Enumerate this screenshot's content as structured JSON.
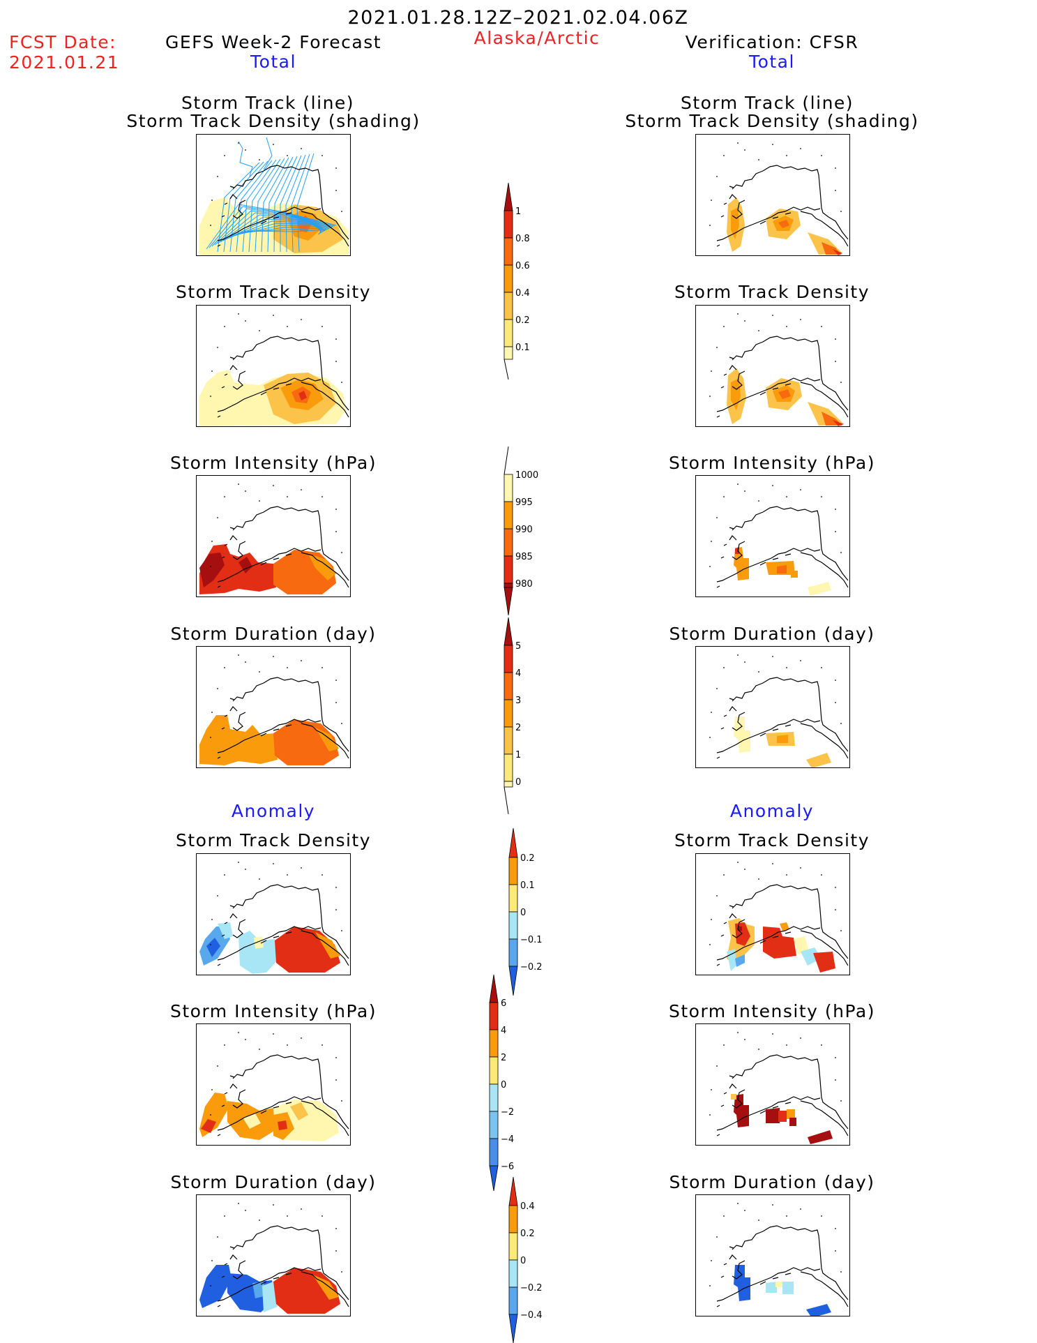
{
  "header": {
    "date_range": "2021.01.28.12Z–2021.02.04.06Z",
    "fcst_label": "FCST Date:",
    "fcst_date": "2021.01.21",
    "left_title": "GEFS Week-2 Forecast",
    "region": "Alaska/Arctic",
    "right_title": "Verification: CFSR",
    "total_left": "Total",
    "total_right": "Total",
    "anomaly_left": "Anomaly",
    "anomaly_right": "Anomaly"
  },
  "panel_titles": {
    "track_line": "Storm Track (line)",
    "track_density_shading": "Storm Track Density (shading)",
    "track_density": "Storm Track Density",
    "intensity": "Storm Intensity (hPa)",
    "duration": "Storm Duration (day)"
  },
  "colorbars": {
    "track_density": [
      "0.1",
      "0.2",
      "0.4",
      "0.6",
      "0.8",
      "1"
    ],
    "intensity": [
      "1000",
      "995",
      "990",
      "985",
      "980"
    ],
    "duration": [
      "0",
      "1",
      "2",
      "3",
      "4",
      "5"
    ],
    "anom_density": [
      "0.2",
      "0.1",
      "0",
      "−0.1",
      "−0.2"
    ],
    "anom_intensity": [
      "6",
      "4",
      "2",
      "0",
      "−2",
      "−4",
      "−6"
    ],
    "anom_duration": [
      "0.4",
      "0.2",
      "0",
      "−0.2",
      "−0.4"
    ]
  },
  "colors": {
    "pale_yellow": "#fff7b0",
    "light_orange": "#fbc34a",
    "orange": "#f99b0a",
    "dark_orange": "#f76a10",
    "red": "#e32e16",
    "dark_red": "#a50f0f",
    "light_blue": "#a8e6f5",
    "mid_blue": "#59a8ec",
    "blue": "#2060e0",
    "track_line": "#1f9fff"
  }
}
